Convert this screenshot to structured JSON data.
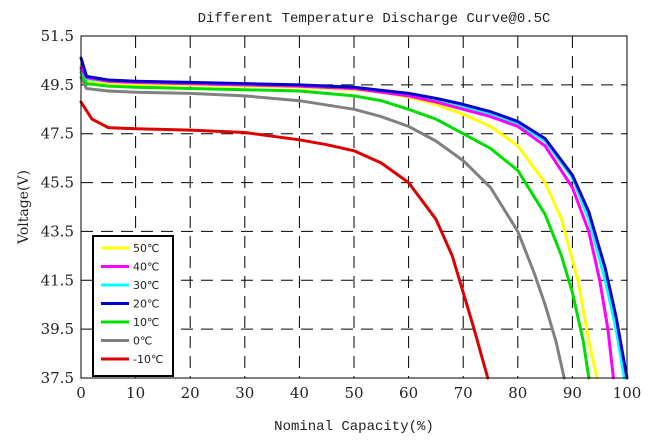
{
  "chart_data": {
    "type": "line",
    "title": "Different Temperature Discharge Curve@0.5C",
    "xlabel": "Nominal Capacity(%)",
    "ylabel": "Voltage(V)",
    "xlim": [
      0,
      100
    ],
    "ylim": [
      37.5,
      51.5
    ],
    "x_ticks": [
      "0",
      "10",
      "20",
      "30",
      "40",
      "50",
      "60",
      "70",
      "80",
      "90",
      "100"
    ],
    "y_ticks": [
      "37.5",
      "39.5",
      "41.5",
      "43.5",
      "45.5",
      "47.5",
      "49.5",
      "51.5"
    ],
    "grid": true,
    "legend_position": "bottom-left",
    "series": [
      {
        "name": "50℃",
        "color": "#ffff00",
        "x": [
          0,
          1,
          5,
          10,
          20,
          30,
          40,
          50,
          55,
          60,
          65,
          70,
          75,
          80,
          85,
          88,
          91,
          93,
          94.5
        ],
        "y": [
          50.3,
          49.7,
          49.55,
          49.5,
          49.5,
          49.45,
          49.4,
          49.3,
          49.2,
          49.0,
          48.7,
          48.3,
          47.8,
          47.0,
          45.5,
          44.0,
          41.5,
          39.0,
          37.5
        ]
      },
      {
        "name": "40℃",
        "color": "#ff00ff",
        "x": [
          0,
          1,
          5,
          10,
          20,
          30,
          40,
          50,
          60,
          65,
          70,
          75,
          80,
          85,
          90,
          93,
          95,
          96.5,
          97.5
        ],
        "y": [
          50.2,
          49.8,
          49.65,
          49.6,
          49.55,
          49.5,
          49.45,
          49.35,
          49.05,
          48.8,
          48.5,
          48.2,
          47.8,
          47.0,
          45.3,
          43.5,
          41.5,
          39.5,
          37.5
        ]
      },
      {
        "name": "30℃",
        "color": "#00ffff",
        "x": [
          0,
          1,
          5,
          10,
          20,
          30,
          40,
          50,
          60,
          65,
          70,
          75,
          80,
          85,
          90,
          93,
          96,
          98,
          99.5
        ],
        "y": [
          50.1,
          49.75,
          49.65,
          49.6,
          49.55,
          49.5,
          49.45,
          49.35,
          49.1,
          48.9,
          48.6,
          48.3,
          47.9,
          47.2,
          45.7,
          44.0,
          41.5,
          39.5,
          37.5
        ]
      },
      {
        "name": "20℃",
        "color": "#0000cc",
        "x": [
          0,
          1,
          5,
          10,
          20,
          30,
          40,
          50,
          60,
          65,
          70,
          75,
          80,
          85,
          90,
          93,
          96,
          98,
          100
        ],
        "y": [
          50.6,
          49.85,
          49.7,
          49.65,
          49.6,
          49.55,
          49.5,
          49.4,
          49.15,
          48.95,
          48.7,
          48.4,
          48.0,
          47.3,
          45.8,
          44.3,
          42.0,
          40.0,
          37.5
        ]
      },
      {
        "name": "10℃",
        "color": "#00dd00",
        "x": [
          0,
          1,
          5,
          10,
          20,
          30,
          40,
          50,
          55,
          60,
          65,
          70,
          75,
          80,
          85,
          88,
          90,
          92,
          93
        ],
        "y": [
          50.0,
          49.55,
          49.45,
          49.4,
          49.35,
          49.3,
          49.25,
          49.05,
          48.85,
          48.5,
          48.1,
          47.5,
          46.9,
          46.0,
          44.2,
          42.5,
          41.0,
          39.0,
          37.5
        ]
      },
      {
        "name": "0℃",
        "color": "#808080",
        "x": [
          0,
          1,
          5,
          10,
          20,
          30,
          40,
          50,
          55,
          60,
          65,
          70,
          75,
          80,
          83,
          85,
          87,
          88.5
        ],
        "y": [
          49.8,
          49.35,
          49.25,
          49.2,
          49.15,
          49.05,
          48.85,
          48.5,
          48.2,
          47.8,
          47.2,
          46.4,
          45.3,
          43.5,
          41.8,
          40.5,
          39.0,
          37.5
        ]
      },
      {
        "name": "-10℃",
        "color": "#dd0000",
        "x": [
          0,
          2,
          5,
          10,
          20,
          30,
          35,
          40,
          45,
          50,
          55,
          60,
          65,
          68,
          70,
          72,
          73.5,
          74.5
        ],
        "y": [
          48.8,
          48.1,
          47.75,
          47.7,
          47.65,
          47.55,
          47.4,
          47.25,
          47.05,
          46.8,
          46.3,
          45.5,
          44.0,
          42.5,
          41.0,
          39.5,
          38.3,
          37.5
        ]
      }
    ]
  }
}
